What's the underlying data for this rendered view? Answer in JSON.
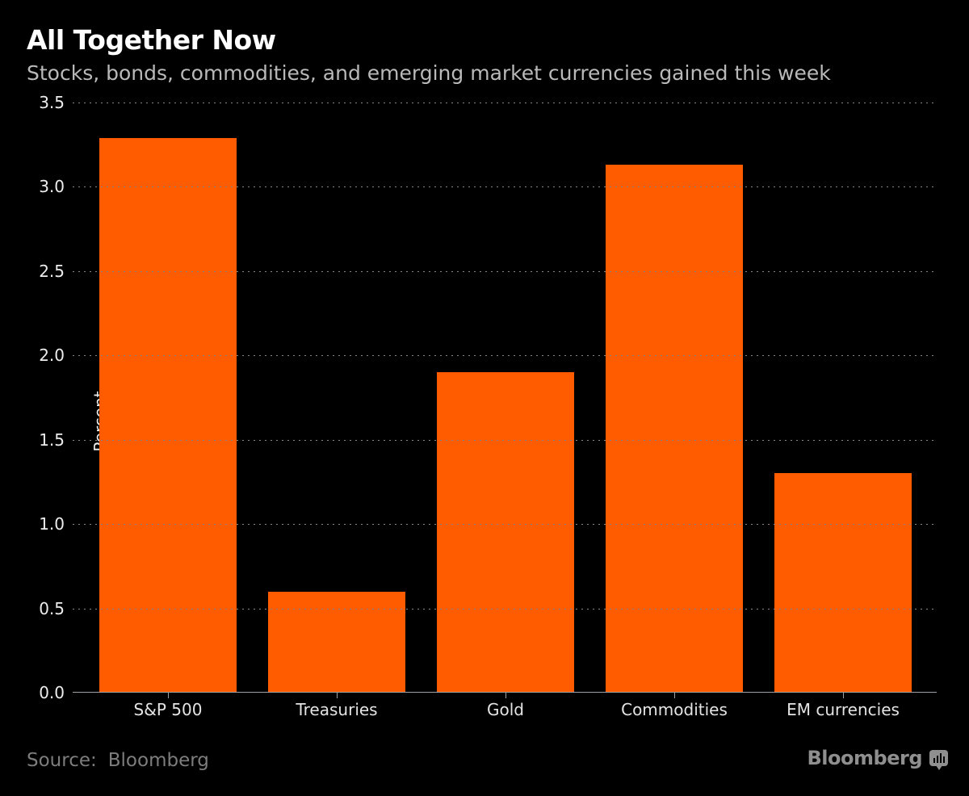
{
  "chart_data": {
    "type": "bar",
    "title": "All Together Now",
    "subtitle": "Stocks, bonds, commodities, and emerging market currencies gained this week",
    "categories": [
      "S&P 500",
      "Treasuries",
      "Gold",
      "Commodities",
      "EM currencies"
    ],
    "values": [
      3.29,
      0.6,
      1.9,
      3.13,
      1.3
    ],
    "xlabel": "",
    "ylabel": "Percent",
    "ylim": [
      0,
      3.5
    ],
    "yticks": [
      0,
      0.5,
      1,
      1.5,
      2,
      2.5,
      3,
      3.5
    ],
    "ytick_format": "one-decimal",
    "grid": "horizontal-dotted",
    "legend": "none",
    "bar_color": "#ff5c00",
    "background_color": "#000000"
  },
  "footer": {
    "source_label": "Source:",
    "source_value": "Bloomberg",
    "logo_text": "Bloomberg",
    "logo_icon": "bar-chart-speech-bubble-icon"
  }
}
